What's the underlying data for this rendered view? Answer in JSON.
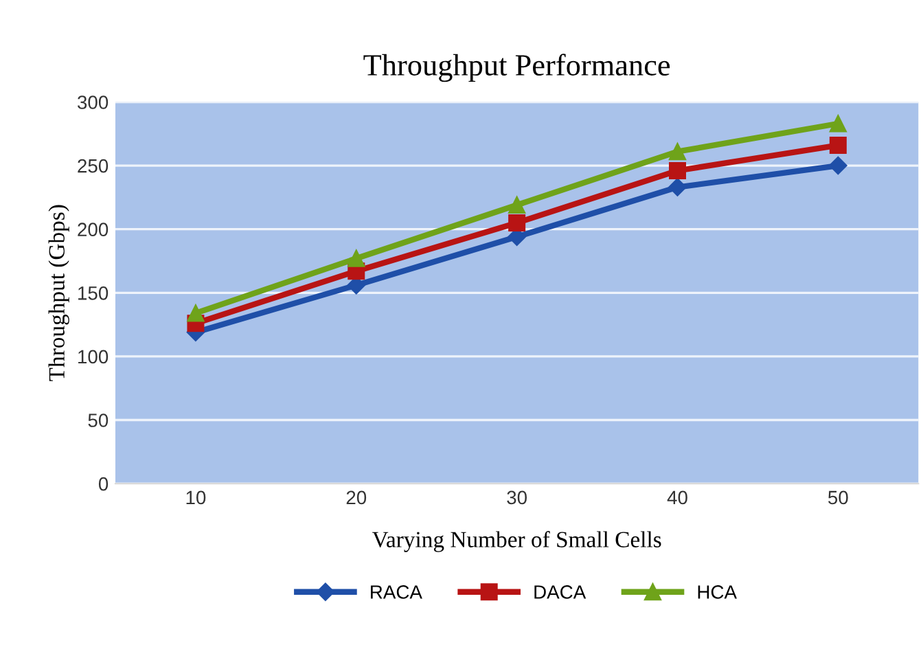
{
  "chart_data": {
    "type": "line",
    "title": "Throughput Performance",
    "xlabel": "Varying Number of Small Cells",
    "ylabel": "Throughput (Gbps)",
    "categories": [
      "10",
      "20",
      "30",
      "40",
      "50"
    ],
    "series": [
      {
        "name": "RACA",
        "color": "#1f4fa8",
        "values": [
          119,
          156,
          194,
          233,
          250
        ],
        "marker": "diamond"
      },
      {
        "name": "DACA",
        "color": "#b81414",
        "values": [
          126,
          167,
          205,
          246,
          266
        ],
        "marker": "square"
      },
      {
        "name": "HCA",
        "color": "#6fa31a",
        "values": [
          134,
          177,
          219,
          261,
          283
        ],
        "marker": "triangle"
      }
    ],
    "ylim": [
      0,
      300
    ],
    "yticks": [
      0,
      50,
      100,
      150,
      200,
      250,
      300
    ],
    "grid": "y",
    "legend": "bottom",
    "line_style": "solid"
  }
}
